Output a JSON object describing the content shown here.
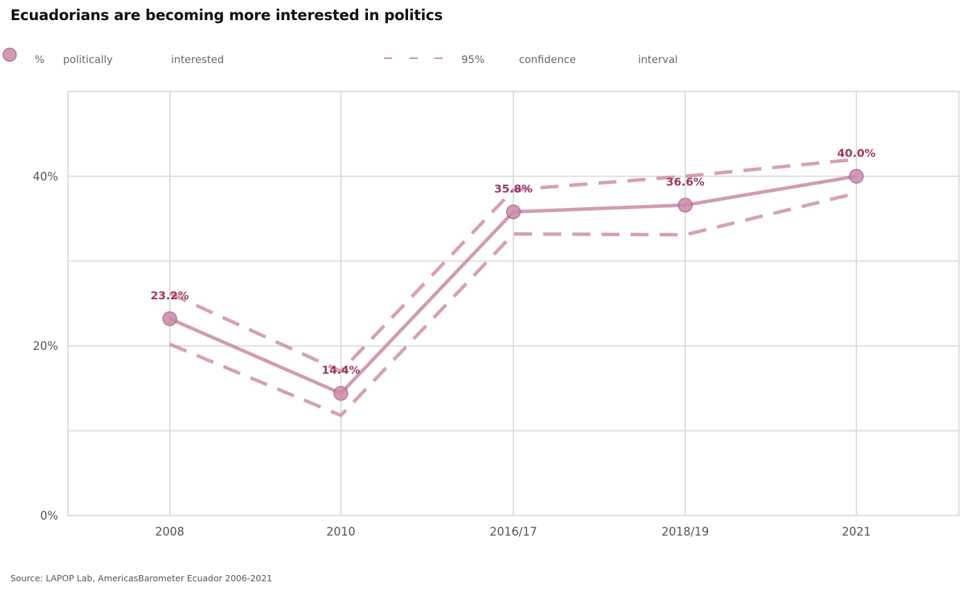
{
  "title": "Ecuadorians are becoming more interested in politics",
  "source": "Source: LAPOP Lab, AmericasBarometer Ecuador 2006-2021",
  "legend": {
    "point_words": [
      "%",
      "politically",
      "interested"
    ],
    "ci_words": [
      "95%",
      "confidence",
      "interval"
    ]
  },
  "colors": {
    "series": "#c98aa8",
    "label": "#9b3a62",
    "grid": "#dddddd"
  },
  "chart_data": {
    "type": "line",
    "categories": [
      "2008",
      "2010",
      "2016/17",
      "2018/19",
      "2021"
    ],
    "series": [
      {
        "name": "% politically interested",
        "values": [
          23.2,
          14.4,
          35.8,
          36.6,
          40.0
        ],
        "labels": [
          "23.2%",
          "14.4%",
          "35.8%",
          "36.6%",
          "40.0%"
        ],
        "ci_upper": [
          26.2,
          17.0,
          38.4,
          40.0,
          42.0
        ],
        "ci_lower": [
          20.2,
          11.8,
          33.2,
          33.1,
          38.0
        ]
      }
    ],
    "ylim": [
      0,
      50
    ],
    "yticks": [
      0,
      20,
      40
    ],
    "ytick_labels": [
      "0%",
      "20%",
      "40%"
    ],
    "minor_gridlines": [
      10,
      30,
      50
    ],
    "grid": true,
    "legend_position": "top-left"
  }
}
